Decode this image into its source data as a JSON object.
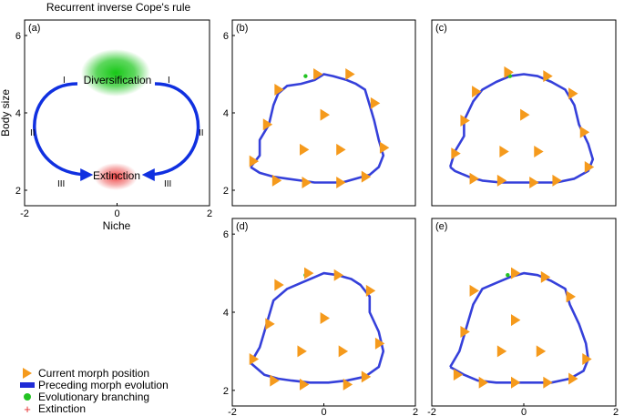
{
  "figure_title": "Recurrent inverse Cope's rule",
  "legend": {
    "current_morph": "Current morph position",
    "preceding_evolution": "Preceding morph evolution",
    "branching": "Evolutionary branching",
    "extinction": "Extinction"
  },
  "colors": {
    "triangle": "#f59a1c",
    "trajectory": "#1f2bd6",
    "branching": "#22c322",
    "extinction": "#e53030",
    "axis": "#000000"
  },
  "chart_data": [
    {
      "type": "diagram",
      "panel_label": "(a)",
      "xlabel": "Niche",
      "ylabel": "Body size",
      "xlim": [
        -2,
        2
      ],
      "ylim": [
        1.6,
        6.4
      ],
      "xticks": [
        -2,
        0,
        2
      ],
      "yticks": [
        2,
        4,
        6
      ],
      "top_label": "Diversification",
      "bottom_label": "Extinction",
      "phase_labels": {
        "left_top": "I",
        "right_top": "I",
        "left_mid": "II",
        "right_mid": "II",
        "left_bottom": "III",
        "right_bottom": "III"
      }
    },
    {
      "type": "scatter",
      "panel_label": "(b)",
      "xlim": [
        -2,
        2
      ],
      "ylim": [
        1.6,
        6.4
      ],
      "xticks": [],
      "yticks": [
        2,
        4,
        6
      ],
      "branching": [
        [
          -0.4,
          4.95
        ]
      ],
      "trajectory": [
        [
          -1.6,
          2.6
        ],
        [
          -1.4,
          2.9
        ],
        [
          -1.4,
          3.3
        ],
        [
          -1.2,
          3.7
        ],
        [
          -1.1,
          4.2
        ],
        [
          -1.0,
          4.5
        ],
        [
          -0.8,
          4.7
        ],
        [
          -0.5,
          4.75
        ],
        [
          -0.2,
          4.85
        ],
        [
          0.0,
          5.0
        ],
        [
          0.2,
          4.95
        ],
        [
          0.5,
          4.85
        ],
        [
          0.7,
          4.75
        ],
        [
          0.9,
          4.6
        ],
        [
          1.0,
          4.2
        ],
        [
          1.1,
          3.8
        ],
        [
          1.2,
          3.3
        ],
        [
          1.3,
          2.9
        ],
        [
          1.2,
          2.6
        ],
        [
          1.0,
          2.4
        ],
        [
          0.7,
          2.3
        ],
        [
          0.4,
          2.2
        ],
        [
          0.1,
          2.2
        ],
        [
          -0.2,
          2.2
        ],
        [
          -0.5,
          2.25
        ],
        [
          -0.8,
          2.3
        ],
        [
          -1.1,
          2.35
        ],
        [
          -1.4,
          2.45
        ],
        [
          -1.6,
          2.6
        ]
      ],
      "triangles": [
        [
          -1.0,
          4.6
        ],
        [
          0.55,
          5.0
        ],
        [
          -0.15,
          5.0
        ],
        [
          1.1,
          4.25
        ],
        [
          1.3,
          3.1
        ],
        [
          -1.25,
          3.7
        ],
        [
          -1.55,
          2.75
        ],
        [
          -1.05,
          2.25
        ],
        [
          -0.4,
          2.2
        ],
        [
          0.35,
          2.2
        ],
        [
          0.9,
          2.35
        ],
        [
          0.0,
          3.95
        ],
        [
          -0.45,
          3.05
        ],
        [
          0.35,
          3.05
        ]
      ]
    },
    {
      "type": "scatter",
      "panel_label": "(c)",
      "xlim": [
        -2,
        2
      ],
      "ylim": [
        1.6,
        6.4
      ],
      "xticks": [],
      "yticks": [],
      "branching": [
        [
          -0.3,
          4.95
        ],
        [
          0.5,
          4.9
        ]
      ],
      "trajectory": [
        [
          -1.6,
          2.6
        ],
        [
          -1.5,
          3.0
        ],
        [
          -1.3,
          3.4
        ],
        [
          -1.3,
          3.8
        ],
        [
          -1.1,
          4.3
        ],
        [
          -0.9,
          4.6
        ],
        [
          -0.6,
          4.8
        ],
        [
          -0.3,
          4.95
        ],
        [
          0.0,
          5.0
        ],
        [
          0.3,
          4.95
        ],
        [
          0.6,
          4.8
        ],
        [
          0.9,
          4.6
        ],
        [
          1.1,
          4.2
        ],
        [
          1.2,
          3.7
        ],
        [
          1.4,
          3.2
        ],
        [
          1.5,
          2.8
        ],
        [
          1.4,
          2.5
        ],
        [
          1.1,
          2.3
        ],
        [
          0.7,
          2.2
        ],
        [
          0.3,
          2.2
        ],
        [
          -0.1,
          2.2
        ],
        [
          -0.5,
          2.2
        ],
        [
          -0.9,
          2.25
        ],
        [
          -1.2,
          2.35
        ],
        [
          -1.5,
          2.5
        ],
        [
          -1.6,
          2.6
        ]
      ],
      "triangles": [
        [
          -1.05,
          4.55
        ],
        [
          -0.35,
          5.05
        ],
        [
          0.5,
          4.95
        ],
        [
          1.05,
          4.5
        ],
        [
          1.3,
          3.5
        ],
        [
          1.4,
          2.6
        ],
        [
          -1.3,
          3.8
        ],
        [
          -1.5,
          2.95
        ],
        [
          -1.1,
          2.3
        ],
        [
          -0.5,
          2.25
        ],
        [
          0.2,
          2.2
        ],
        [
          0.7,
          2.25
        ],
        [
          0.0,
          3.95
        ],
        [
          -0.45,
          3.0
        ],
        [
          0.3,
          3.0
        ]
      ]
    },
    {
      "type": "scatter",
      "panel_label": "(d)",
      "xlim": [
        -2,
        2
      ],
      "ylim": [
        1.6,
        6.4
      ],
      "xticks": [
        -2,
        0,
        2
      ],
      "yticks": [
        2,
        4,
        6
      ],
      "branching": [
        [
          -0.4,
          4.95
        ]
      ],
      "trajectory": [
        [
          -1.6,
          2.7
        ],
        [
          -1.4,
          3.1
        ],
        [
          -1.3,
          3.5
        ],
        [
          -1.2,
          3.9
        ],
        [
          -1.1,
          4.3
        ],
        [
          -0.8,
          4.6
        ],
        [
          -0.5,
          4.75
        ],
        [
          -0.2,
          4.9
        ],
        [
          0.0,
          5.0
        ],
        [
          0.3,
          4.95
        ],
        [
          0.6,
          4.85
        ],
        [
          0.8,
          4.7
        ],
        [
          1.0,
          4.4
        ],
        [
          1.0,
          4.0
        ],
        [
          1.2,
          3.5
        ],
        [
          1.3,
          3.0
        ],
        [
          1.2,
          2.6
        ],
        [
          0.9,
          2.35
        ],
        [
          0.5,
          2.25
        ],
        [
          0.1,
          2.2
        ],
        [
          -0.3,
          2.2
        ],
        [
          -0.7,
          2.25
        ],
        [
          -1.0,
          2.3
        ],
        [
          -1.3,
          2.4
        ],
        [
          -1.6,
          2.7
        ]
      ],
      "triangles": [
        [
          -1.0,
          4.7
        ],
        [
          -0.35,
          5.0
        ],
        [
          0.3,
          4.95
        ],
        [
          1.0,
          4.55
        ],
        [
          1.2,
          3.2
        ],
        [
          -1.2,
          3.7
        ],
        [
          -1.55,
          2.8
        ],
        [
          -1.1,
          2.25
        ],
        [
          -0.45,
          2.15
        ],
        [
          0.5,
          2.15
        ],
        [
          0.9,
          2.35
        ],
        [
          0.0,
          3.85
        ],
        [
          -0.5,
          3.0
        ],
        [
          0.4,
          3.0
        ]
      ]
    },
    {
      "type": "scatter",
      "panel_label": "(e)",
      "xlim": [
        -2,
        2
      ],
      "ylim": [
        1.6,
        6.4
      ],
      "xticks": [
        -2,
        0,
        2
      ],
      "yticks": [],
      "branching": [
        [
          -0.35,
          4.95
        ]
      ],
      "trajectory": [
        [
          -1.6,
          2.6
        ],
        [
          -1.4,
          3.0
        ],
        [
          -1.3,
          3.4
        ],
        [
          -1.2,
          3.8
        ],
        [
          -1.1,
          4.2
        ],
        [
          -0.9,
          4.6
        ],
        [
          -0.6,
          4.75
        ],
        [
          -0.3,
          4.9
        ],
        [
          0.0,
          5.0
        ],
        [
          0.3,
          4.95
        ],
        [
          0.6,
          4.8
        ],
        [
          0.9,
          4.6
        ],
        [
          1.0,
          4.2
        ],
        [
          1.2,
          3.7
        ],
        [
          1.35,
          3.2
        ],
        [
          1.4,
          2.8
        ],
        [
          1.3,
          2.5
        ],
        [
          1.0,
          2.3
        ],
        [
          0.6,
          2.2
        ],
        [
          0.2,
          2.2
        ],
        [
          -0.2,
          2.2
        ],
        [
          -0.6,
          2.2
        ],
        [
          -1.0,
          2.25
        ],
        [
          -1.3,
          2.4
        ],
        [
          -1.6,
          2.6
        ]
      ],
      "triangles": [
        [
          -1.1,
          4.55
        ],
        [
          -0.2,
          5.0
        ],
        [
          0.45,
          4.9
        ],
        [
          1.0,
          4.4
        ],
        [
          1.35,
          2.8
        ],
        [
          -1.3,
          3.5
        ],
        [
          -1.45,
          2.4
        ],
        [
          -0.9,
          2.2
        ],
        [
          -0.2,
          2.2
        ],
        [
          0.5,
          2.2
        ],
        [
          1.05,
          2.3
        ],
        [
          -0.2,
          3.8
        ],
        [
          -0.5,
          3.0
        ],
        [
          0.35,
          3.0
        ]
      ]
    }
  ]
}
